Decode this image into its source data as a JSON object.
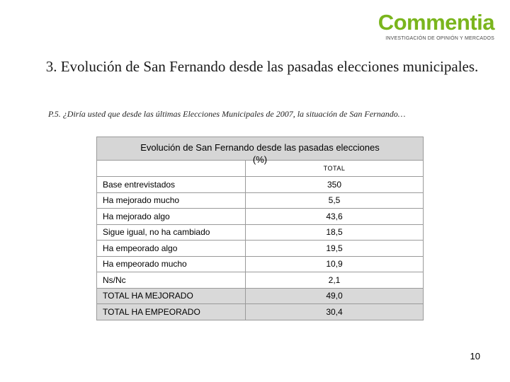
{
  "logo": {
    "name": "Commentia",
    "tagline": "INVESTIGACIÓN DE OPINIÓN Y MERCADOS",
    "color": "#7ab51d"
  },
  "title": "3.  Evolución de San Fernando desde las pasadas elecciones municipales.",
  "question": "P.5. ¿Diría usted que desde las últimas Elecciones Municipales de 2007, la situación de San Fernando…",
  "table": {
    "caption_line1": "Evolución de San Fernando desde las pasadas elecciones",
    "caption_line2": "(%)",
    "column_header": "TOTAL",
    "rows": [
      {
        "label": "Base entrevistados",
        "value": "350"
      },
      {
        "label": "Ha mejorado mucho",
        "value": "5,5"
      },
      {
        "label": "Ha mejorado algo",
        "value": "43,6"
      },
      {
        "label": "Sigue igual, no ha cambiado",
        "value": "18,5"
      },
      {
        "label": "Ha empeorado algo",
        "value": "19,5"
      },
      {
        "label": "Ha empeorado mucho",
        "value": "10,9"
      },
      {
        "label": "Ns/Nc",
        "value": "2,1"
      },
      {
        "label": "TOTAL HA MEJORADO",
        "value": "49,0"
      },
      {
        "label": "TOTAL HA EMPEORADO",
        "value": "30,4"
      }
    ]
  },
  "page_number": "10"
}
